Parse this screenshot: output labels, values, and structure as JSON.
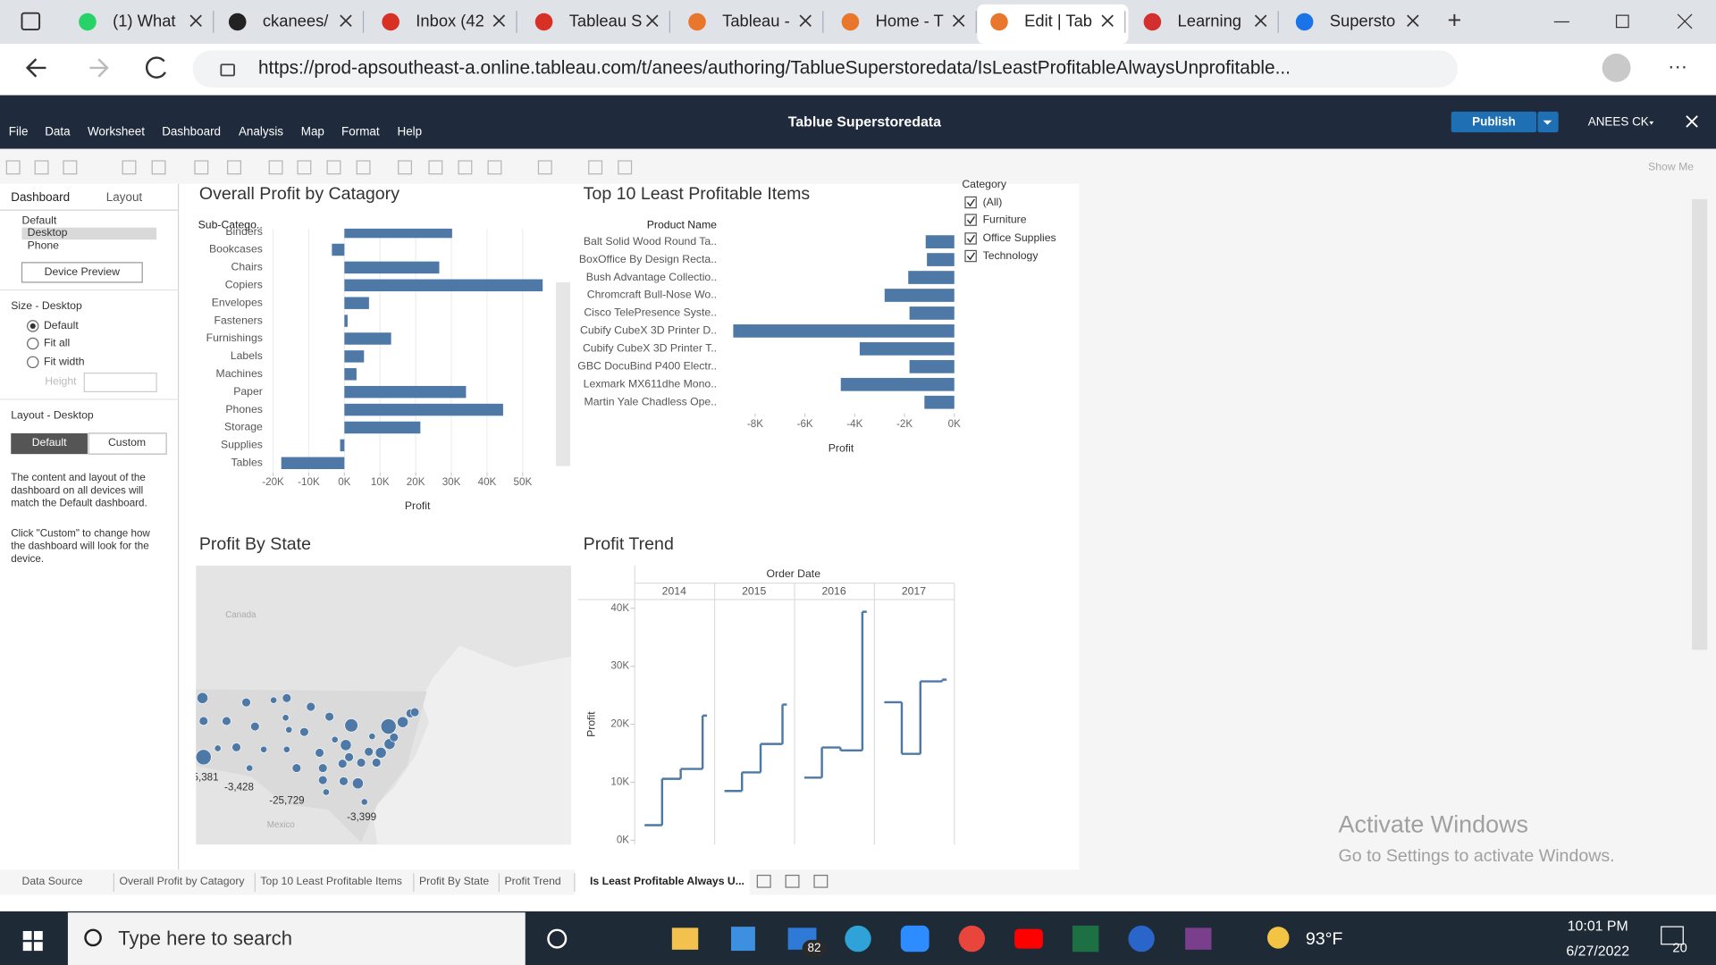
{
  "browser": {
    "tabs": [
      "(1) What",
      "ckanees/",
      "Inbox (42",
      "Tableau S",
      "Tableau -",
      "Home - T",
      "Edit | Tab",
      "Learning",
      "Supersto"
    ],
    "url": "https://prod-apsoutheast-a.online.tableau.com/t/anees/authoring/TablueSuperstoredata/IsLeastProfitableAlwaysUnprofitable..."
  },
  "tableau": {
    "title": "Tablue Superstoredata",
    "menu": [
      "File",
      "Data",
      "Worksheet",
      "Dashboard",
      "Analysis",
      "Map",
      "Format",
      "Help"
    ],
    "publish": "Publish",
    "user": "ANEES CK",
    "show_me": "Show Me"
  },
  "left_panel": {
    "tabs": [
      "Dashboard",
      "Layout"
    ],
    "devices": [
      "Default",
      "Desktop",
      "Phone"
    ],
    "device_preview": "Device Preview",
    "size_title": "Size - Desktop",
    "size_options": [
      "Default",
      "Fit all",
      "Fit width"
    ],
    "height_label": "Height",
    "layout_title": "Layout - Desktop",
    "layout_buttons": [
      "Default",
      "Custom"
    ],
    "notes": [
      [
        "The content and layout of the",
        "dashboard on all devices will",
        "match the Default dashboard."
      ],
      [
        "Click \"Custom\" to change how",
        "the dashboard will look for the",
        "device."
      ]
    ]
  },
  "filter": {
    "title": "Category",
    "items": [
      "(All)",
      "Furniture",
      "Office Supplies",
      "Technology"
    ]
  },
  "chart_data": [
    {
      "type": "bar",
      "orientation": "horizontal",
      "title": "Overall Profit by Catagory",
      "category_header": "Sub-Catego..",
      "x_label": "Profit",
      "categories": [
        "Binders",
        "Bookcases",
        "Chairs",
        "Copiers",
        "Envelopes",
        "Fasteners",
        "Furnishings",
        "Labels",
        "Machines",
        "Paper",
        "Phones",
        "Storage",
        "Supplies",
        "Tables"
      ],
      "values": [
        30200,
        -3500,
        26600,
        55600,
        6900,
        900,
        13100,
        5500,
        3400,
        34100,
        44500,
        21300,
        -1200,
        -17700
      ],
      "color": "#4e79a7",
      "xlim": [
        -22000,
        63000
      ],
      "xticks": [
        {
          "value": -20000,
          "label": "-20K"
        },
        {
          "value": -10000,
          "label": "-10K"
        },
        {
          "value": 0,
          "label": "0K"
        },
        {
          "value": 10000,
          "label": "10K"
        },
        {
          "value": 20000,
          "label": "20K"
        },
        {
          "value": 30000,
          "label": "30K"
        },
        {
          "value": 40000,
          "label": "40K"
        },
        {
          "value": 50000,
          "label": "50K"
        }
      ],
      "grid": true
    },
    {
      "type": "bar",
      "orientation": "horizontal",
      "title": "Top 10 Least Profitable Items",
      "category_header": "Product Name",
      "x_label": "Profit",
      "categories": [
        "Balt Solid Wood Round Ta..",
        "BoxOffice By Design Recta..",
        "Bush Advantage Collectio..",
        "Chromcraft Bull-Nose Wo..",
        "Cisco TelePresence Syste..",
        "Cubify CubeX 3D Printer D..",
        "Cubify CubeX 3D Printer T..",
        "GBC DocuBind P400 Electr..",
        "Lexmark MX611dhe Mono..",
        "Martin Yale Chadless Ope.."
      ],
      "values": [
        -1150,
        -1100,
        -1850,
        -2800,
        -1800,
        -8880,
        -3800,
        -1800,
        -4560,
        -1200
      ],
      "color": "#4e79a7",
      "xlim": [
        -9100,
        0
      ],
      "xticks": [
        {
          "value": -8000,
          "label": "-8K"
        },
        {
          "value": -6000,
          "label": "-6K"
        },
        {
          "value": -4000,
          "label": "-4K"
        },
        {
          "value": -2000,
          "label": "-2K"
        },
        {
          "value": 0,
          "label": "0K"
        }
      ],
      "grid": false
    },
    {
      "type": "line",
      "title": "Profit Trend",
      "x_header": "Order Date",
      "y_label": "Profit",
      "categories": [
        "2014",
        "2015",
        "2016",
        "2017"
      ],
      "values": [
        [
          2600,
          10600,
          12300,
          21500
        ],
        [
          8500,
          11700,
          16600,
          23400
        ],
        [
          10800,
          16000,
          15500,
          39400
        ],
        [
          23800,
          14900,
          27400,
          27700
        ]
      ],
      "color": "#4e79a7",
      "ylim": [
        0,
        41500
      ],
      "yticks": [
        {
          "value": 0,
          "label": "0K"
        },
        {
          "value": 10000,
          "label": "10K"
        },
        {
          "value": 20000,
          "label": "20K"
        },
        {
          "value": 30000,
          "label": "30K"
        },
        {
          "value": 40000,
          "label": "40K"
        }
      ]
    }
  ],
  "map": {
    "title": "Profit By State",
    "places": [
      "Canada",
      "Mexico"
    ],
    "labels": [
      "5,381",
      "-3,428",
      "-25,729",
      "-3,399"
    ]
  },
  "sheet_tabs": [
    "Data Source",
    "Overall Profit by Catagory",
    "Top 10 Least Profitable Items",
    "Profit By State",
    "Profit Trend",
    "Is Least Profitable Always U..."
  ],
  "watermark": [
    "Activate Windows",
    "Go to Settings to activate Windows."
  ],
  "taskbar": {
    "search": "Type here to search",
    "mail_badge": "82",
    "weather": "93°F",
    "time": "10:01 PM",
    "date": "6/27/2022",
    "notifications": "20"
  }
}
